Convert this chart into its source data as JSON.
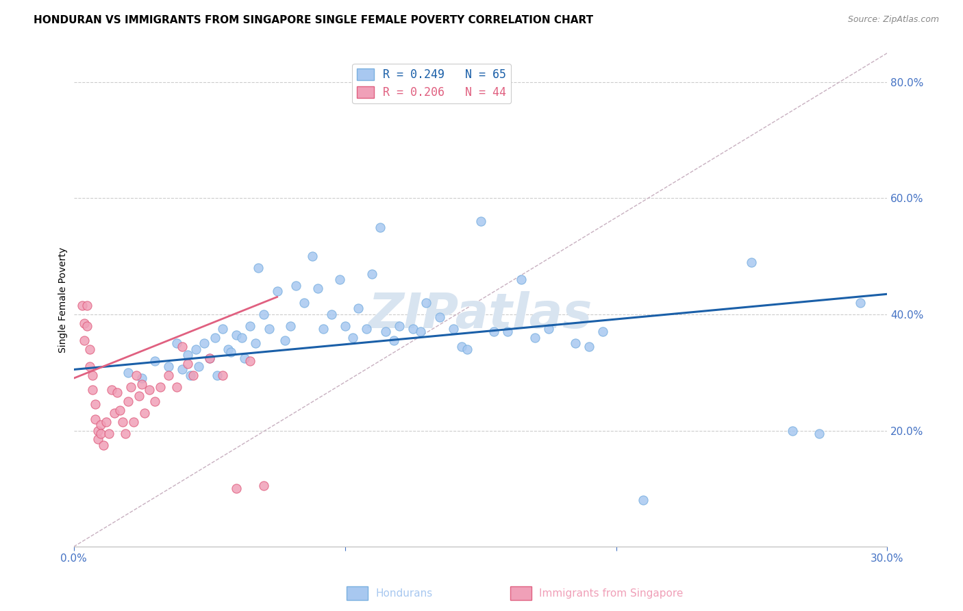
{
  "title": "HONDURAN VS IMMIGRANTS FROM SINGAPORE SINGLE FEMALE POVERTY CORRELATION CHART",
  "source": "Source: ZipAtlas.com",
  "ylabel": "Single Female Poverty",
  "xlim": [
    0.0,
    0.3
  ],
  "ylim": [
    0.0,
    0.85
  ],
  "yticks": [
    0.2,
    0.4,
    0.6,
    0.8
  ],
  "xticks": [
    0.0,
    0.1,
    0.2,
    0.3
  ],
  "xtick_labels": [
    "0.0%",
    "",
    "",
    "30.0%"
  ],
  "ytick_labels": [
    "20.0%",
    "40.0%",
    "60.0%",
    "80.0%"
  ],
  "background_color": "#ffffff",
  "watermark": "ZIPatlas",
  "legend_label_blue": "R = 0.249   N = 65",
  "legend_label_pink": "R = 0.206   N = 44",
  "blue_scatter_x": [
    0.02,
    0.025,
    0.03,
    0.035,
    0.038,
    0.04,
    0.042,
    0.043,
    0.045,
    0.046,
    0.048,
    0.05,
    0.052,
    0.053,
    0.055,
    0.057,
    0.058,
    0.06,
    0.062,
    0.063,
    0.065,
    0.067,
    0.068,
    0.07,
    0.072,
    0.075,
    0.078,
    0.08,
    0.082,
    0.085,
    0.088,
    0.09,
    0.092,
    0.095,
    0.098,
    0.1,
    0.103,
    0.105,
    0.108,
    0.11,
    0.113,
    0.115,
    0.118,
    0.12,
    0.125,
    0.128,
    0.13,
    0.135,
    0.14,
    0.143,
    0.145,
    0.15,
    0.155,
    0.16,
    0.165,
    0.17,
    0.175,
    0.185,
    0.19,
    0.195,
    0.21,
    0.25,
    0.265,
    0.275,
    0.29
  ],
  "blue_scatter_y": [
    0.3,
    0.29,
    0.32,
    0.31,
    0.35,
    0.305,
    0.33,
    0.295,
    0.34,
    0.31,
    0.35,
    0.325,
    0.36,
    0.295,
    0.375,
    0.34,
    0.335,
    0.365,
    0.36,
    0.325,
    0.38,
    0.35,
    0.48,
    0.4,
    0.375,
    0.44,
    0.355,
    0.38,
    0.45,
    0.42,
    0.5,
    0.445,
    0.375,
    0.4,
    0.46,
    0.38,
    0.36,
    0.41,
    0.375,
    0.47,
    0.55,
    0.37,
    0.355,
    0.38,
    0.375,
    0.37,
    0.42,
    0.395,
    0.375,
    0.345,
    0.34,
    0.56,
    0.37,
    0.37,
    0.46,
    0.36,
    0.375,
    0.35,
    0.345,
    0.37,
    0.08,
    0.49,
    0.2,
    0.195,
    0.42
  ],
  "pink_scatter_x": [
    0.003,
    0.004,
    0.004,
    0.005,
    0.005,
    0.006,
    0.006,
    0.007,
    0.007,
    0.008,
    0.008,
    0.009,
    0.009,
    0.01,
    0.01,
    0.011,
    0.012,
    0.013,
    0.014,
    0.015,
    0.016,
    0.017,
    0.018,
    0.019,
    0.02,
    0.021,
    0.022,
    0.023,
    0.024,
    0.025,
    0.026,
    0.028,
    0.03,
    0.032,
    0.035,
    0.038,
    0.04,
    0.042,
    0.044,
    0.05,
    0.055,
    0.06,
    0.065,
    0.07
  ],
  "pink_scatter_y": [
    0.415,
    0.385,
    0.355,
    0.415,
    0.38,
    0.34,
    0.31,
    0.295,
    0.27,
    0.245,
    0.22,
    0.2,
    0.185,
    0.21,
    0.195,
    0.175,
    0.215,
    0.195,
    0.27,
    0.23,
    0.265,
    0.235,
    0.215,
    0.195,
    0.25,
    0.275,
    0.215,
    0.295,
    0.26,
    0.28,
    0.23,
    0.27,
    0.25,
    0.275,
    0.295,
    0.275,
    0.345,
    0.315,
    0.295,
    0.325,
    0.295,
    0.1,
    0.32,
    0.105
  ],
  "blue_line_x": [
    0.0,
    0.3
  ],
  "blue_line_y": [
    0.305,
    0.435
  ],
  "pink_line_x": [
    0.0,
    0.075
  ],
  "pink_line_y": [
    0.29,
    0.43
  ],
  "diag_line_x": [
    0.0,
    0.3
  ],
  "diag_line_y": [
    0.0,
    0.85
  ],
  "blue_color": "#a8c8f0",
  "blue_edge_color": "#7ab0e0",
  "blue_line_color": "#1a5fa8",
  "pink_color": "#f0a0b8",
  "pink_edge_color": "#e06080",
  "pink_line_color": "#e06080",
  "diag_color": "#c8b0c0",
  "axis_color": "#4472c4",
  "grid_color": "#cccccc",
  "title_fontsize": 11,
  "axis_label_fontsize": 10,
  "tick_fontsize": 11,
  "legend_fontsize": 12,
  "watermark_fontsize": 52,
  "watermark_color": "#d8e4f0"
}
